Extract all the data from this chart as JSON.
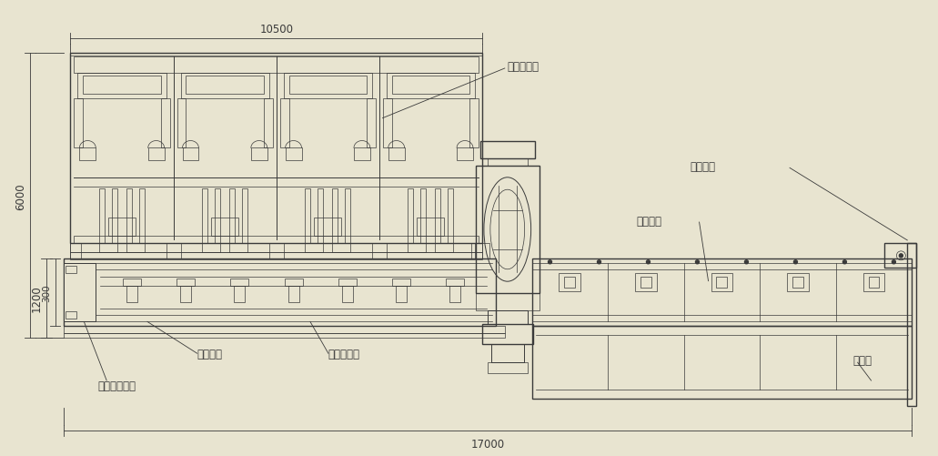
{
  "bg_color": "#e8e4d0",
  "line_color": "#3a3a3a",
  "fig_width": 10.31,
  "fig_height": 5.02,
  "labels": {
    "dim_10500": "10500",
    "dim_17000": "17000",
    "dim_6000": "6000",
    "dim_1200": "1200",
    "dim_300": "300",
    "label_auto": "自动上料架",
    "label_feed_main": "上料主机",
    "label_cut_beam": "切割头横梁",
    "label_chuck": "精密气动卡盘",
    "label_spray": "喷淤系统",
    "label_unload_main": "下料主机",
    "label_unload_rack": "下料架"
  },
  "font_size": 8.5,
  "font_size_dim": 8.5
}
